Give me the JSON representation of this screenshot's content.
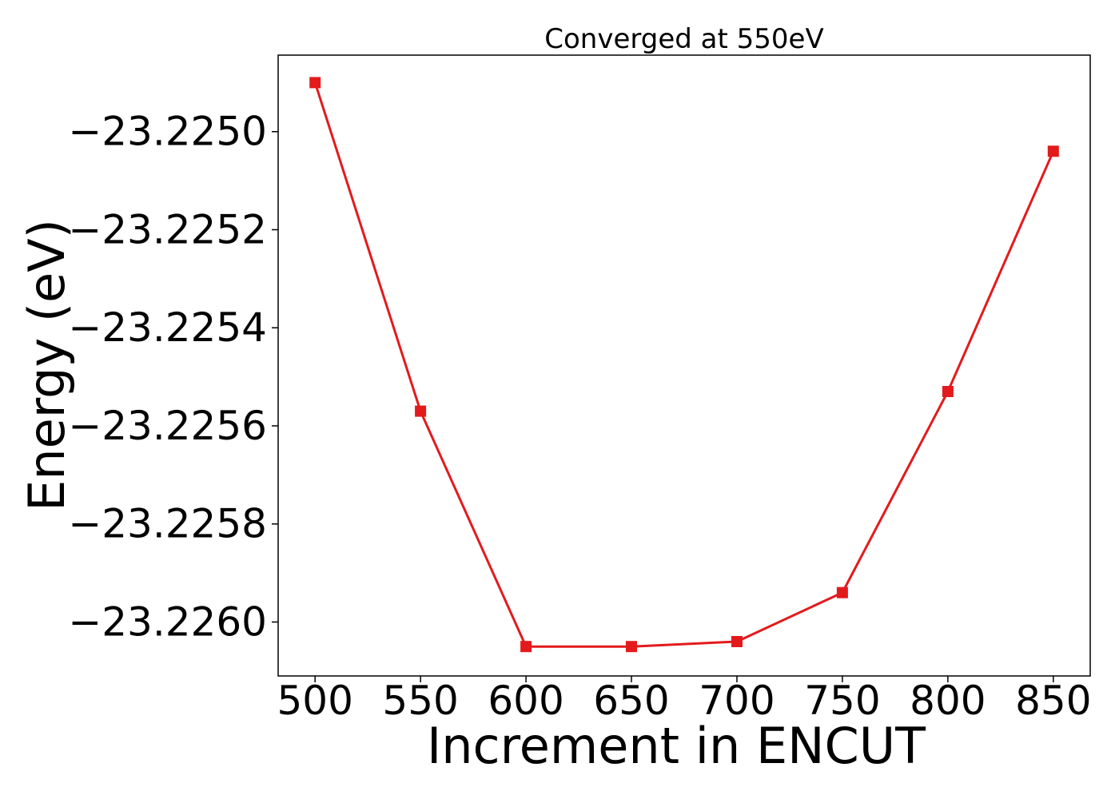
{
  "chart_data": {
    "type": "line",
    "title": "Converged at 550eV",
    "xlabel": "Increment in ENCUT",
    "ylabel": "Energy (eV)",
    "x": [
      500,
      550,
      600,
      650,
      700,
      750,
      800,
      850
    ],
    "x_ticks": [
      500,
      550,
      600,
      650,
      700,
      750,
      800,
      850
    ],
    "x_tick_labels": [
      "500",
      "550",
      "600",
      "650",
      "700",
      "750",
      "800",
      "850"
    ],
    "y_ticks": [
      -23.225,
      -23.2252,
      -23.2254,
      -23.2256,
      -23.2258,
      -23.226
    ],
    "y_tick_labels": [
      "−23.2250",
      "−23.2252",
      "−23.2254",
      "−23.2256",
      "−23.2258",
      "−23.2260"
    ],
    "xlim": [
      482.5,
      867.5
    ],
    "ylim": [
      -23.22611,
      -23.224844
    ],
    "grid": false,
    "series": [
      {
        "color": "#e31a1c",
        "marker": "square",
        "values": [
          -23.2249,
          -23.22557,
          -23.22605,
          -23.22605,
          -23.22604,
          -23.22594,
          -23.22553,
          -23.22504
        ]
      }
    ]
  }
}
